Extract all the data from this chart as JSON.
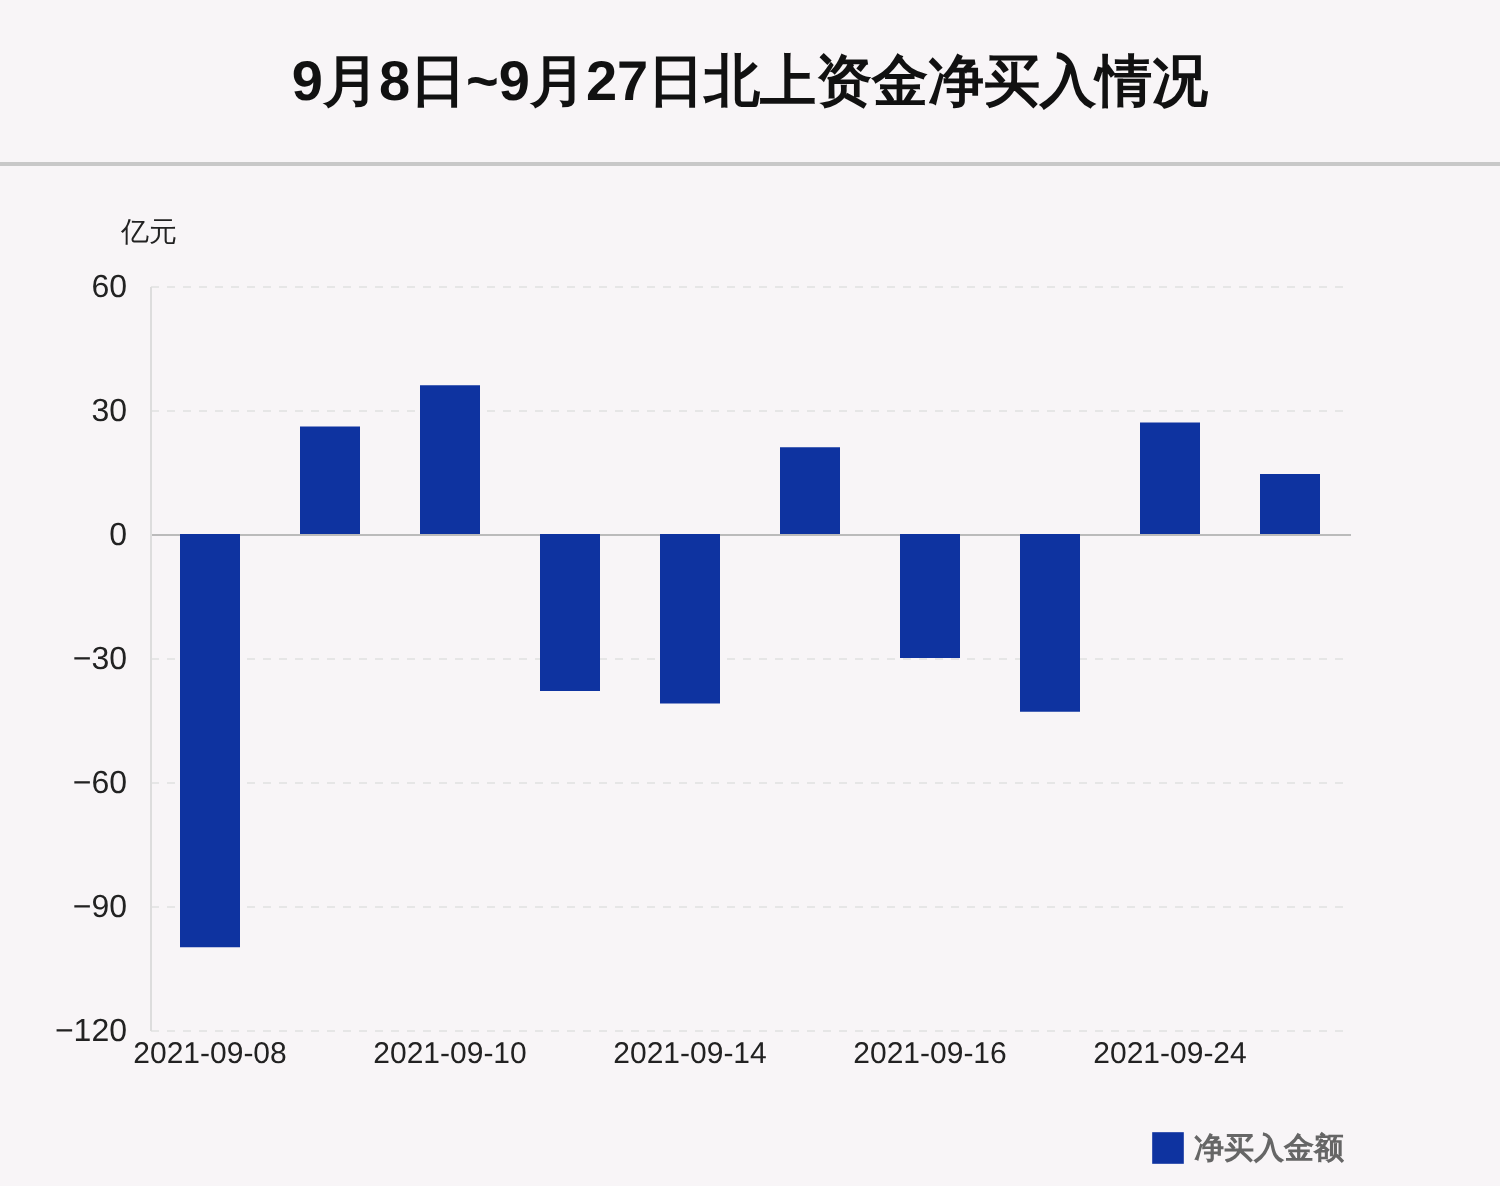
{
  "chart_data": {
    "type": "bar",
    "title": "9月8日~9月27日北上资金净买入情况",
    "ylabel": "亿元",
    "categories": [
      "2021-09-08",
      null,
      "2021-09-10",
      null,
      "2021-09-14",
      null,
      "2021-09-16",
      null,
      "2021-09-24",
      null
    ],
    "series": [
      {
        "name": "净买入金额",
        "color": "#0e33a0",
        "values": [
          -100,
          26,
          36,
          -38,
          -41,
          21,
          -30,
          -43,
          27,
          14.5
        ]
      }
    ],
    "ylim": [
      -120,
      60
    ],
    "yticks": [
      -120,
      -90,
      -60,
      -30,
      0,
      30,
      60
    ],
    "grid": "y",
    "legend": "bottom right"
  }
}
